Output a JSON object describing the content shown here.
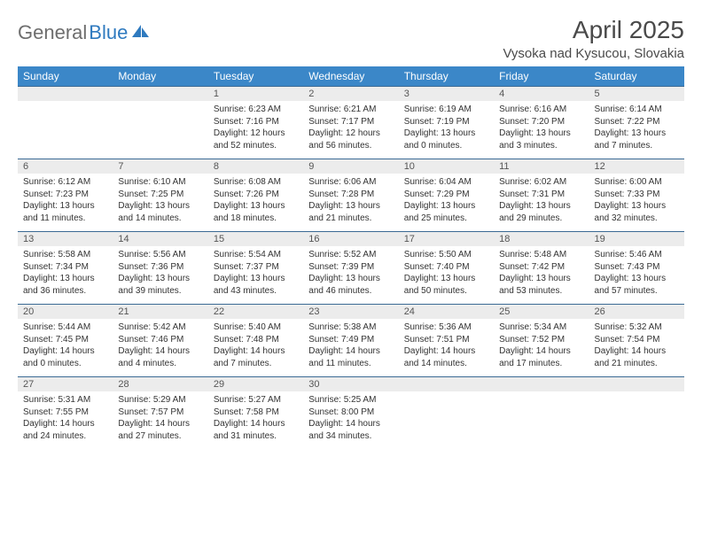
{
  "brand": {
    "name_part1": "General",
    "name_part2": "Blue",
    "icon_color": "#2f7abf"
  },
  "title": {
    "month": "April 2025",
    "location": "Vysoka nad Kysucou, Slovakia"
  },
  "colors": {
    "header_bg": "#3b87c8",
    "header_text": "#ffffff",
    "daynum_bg": "#ececec",
    "row_border": "#3b6a94",
    "body_text": "#333333",
    "title_text": "#4a4a4a",
    "logo_gray": "#6e6e6e"
  },
  "dow": [
    "Sunday",
    "Monday",
    "Tuesday",
    "Wednesday",
    "Thursday",
    "Friday",
    "Saturday"
  ],
  "weeks": [
    [
      {
        "num": "",
        "lines": [
          "",
          "",
          "",
          ""
        ]
      },
      {
        "num": "",
        "lines": [
          "",
          "",
          "",
          ""
        ]
      },
      {
        "num": "1",
        "lines": [
          "Sunrise: 6:23 AM",
          "Sunset: 7:16 PM",
          "Daylight: 12 hours",
          "and 52 minutes."
        ]
      },
      {
        "num": "2",
        "lines": [
          "Sunrise: 6:21 AM",
          "Sunset: 7:17 PM",
          "Daylight: 12 hours",
          "and 56 minutes."
        ]
      },
      {
        "num": "3",
        "lines": [
          "Sunrise: 6:19 AM",
          "Sunset: 7:19 PM",
          "Daylight: 13 hours",
          "and 0 minutes."
        ]
      },
      {
        "num": "4",
        "lines": [
          "Sunrise: 6:16 AM",
          "Sunset: 7:20 PM",
          "Daylight: 13 hours",
          "and 3 minutes."
        ]
      },
      {
        "num": "5",
        "lines": [
          "Sunrise: 6:14 AM",
          "Sunset: 7:22 PM",
          "Daylight: 13 hours",
          "and 7 minutes."
        ]
      }
    ],
    [
      {
        "num": "6",
        "lines": [
          "Sunrise: 6:12 AM",
          "Sunset: 7:23 PM",
          "Daylight: 13 hours",
          "and 11 minutes."
        ]
      },
      {
        "num": "7",
        "lines": [
          "Sunrise: 6:10 AM",
          "Sunset: 7:25 PM",
          "Daylight: 13 hours",
          "and 14 minutes."
        ]
      },
      {
        "num": "8",
        "lines": [
          "Sunrise: 6:08 AM",
          "Sunset: 7:26 PM",
          "Daylight: 13 hours",
          "and 18 minutes."
        ]
      },
      {
        "num": "9",
        "lines": [
          "Sunrise: 6:06 AM",
          "Sunset: 7:28 PM",
          "Daylight: 13 hours",
          "and 21 minutes."
        ]
      },
      {
        "num": "10",
        "lines": [
          "Sunrise: 6:04 AM",
          "Sunset: 7:29 PM",
          "Daylight: 13 hours",
          "and 25 minutes."
        ]
      },
      {
        "num": "11",
        "lines": [
          "Sunrise: 6:02 AM",
          "Sunset: 7:31 PM",
          "Daylight: 13 hours",
          "and 29 minutes."
        ]
      },
      {
        "num": "12",
        "lines": [
          "Sunrise: 6:00 AM",
          "Sunset: 7:33 PM",
          "Daylight: 13 hours",
          "and 32 minutes."
        ]
      }
    ],
    [
      {
        "num": "13",
        "lines": [
          "Sunrise: 5:58 AM",
          "Sunset: 7:34 PM",
          "Daylight: 13 hours",
          "and 36 minutes."
        ]
      },
      {
        "num": "14",
        "lines": [
          "Sunrise: 5:56 AM",
          "Sunset: 7:36 PM",
          "Daylight: 13 hours",
          "and 39 minutes."
        ]
      },
      {
        "num": "15",
        "lines": [
          "Sunrise: 5:54 AM",
          "Sunset: 7:37 PM",
          "Daylight: 13 hours",
          "and 43 minutes."
        ]
      },
      {
        "num": "16",
        "lines": [
          "Sunrise: 5:52 AM",
          "Sunset: 7:39 PM",
          "Daylight: 13 hours",
          "and 46 minutes."
        ]
      },
      {
        "num": "17",
        "lines": [
          "Sunrise: 5:50 AM",
          "Sunset: 7:40 PM",
          "Daylight: 13 hours",
          "and 50 minutes."
        ]
      },
      {
        "num": "18",
        "lines": [
          "Sunrise: 5:48 AM",
          "Sunset: 7:42 PM",
          "Daylight: 13 hours",
          "and 53 minutes."
        ]
      },
      {
        "num": "19",
        "lines": [
          "Sunrise: 5:46 AM",
          "Sunset: 7:43 PM",
          "Daylight: 13 hours",
          "and 57 minutes."
        ]
      }
    ],
    [
      {
        "num": "20",
        "lines": [
          "Sunrise: 5:44 AM",
          "Sunset: 7:45 PM",
          "Daylight: 14 hours",
          "and 0 minutes."
        ]
      },
      {
        "num": "21",
        "lines": [
          "Sunrise: 5:42 AM",
          "Sunset: 7:46 PM",
          "Daylight: 14 hours",
          "and 4 minutes."
        ]
      },
      {
        "num": "22",
        "lines": [
          "Sunrise: 5:40 AM",
          "Sunset: 7:48 PM",
          "Daylight: 14 hours",
          "and 7 minutes."
        ]
      },
      {
        "num": "23",
        "lines": [
          "Sunrise: 5:38 AM",
          "Sunset: 7:49 PM",
          "Daylight: 14 hours",
          "and 11 minutes."
        ]
      },
      {
        "num": "24",
        "lines": [
          "Sunrise: 5:36 AM",
          "Sunset: 7:51 PM",
          "Daylight: 14 hours",
          "and 14 minutes."
        ]
      },
      {
        "num": "25",
        "lines": [
          "Sunrise: 5:34 AM",
          "Sunset: 7:52 PM",
          "Daylight: 14 hours",
          "and 17 minutes."
        ]
      },
      {
        "num": "26",
        "lines": [
          "Sunrise: 5:32 AM",
          "Sunset: 7:54 PM",
          "Daylight: 14 hours",
          "and 21 minutes."
        ]
      }
    ],
    [
      {
        "num": "27",
        "lines": [
          "Sunrise: 5:31 AM",
          "Sunset: 7:55 PM",
          "Daylight: 14 hours",
          "and 24 minutes."
        ]
      },
      {
        "num": "28",
        "lines": [
          "Sunrise: 5:29 AM",
          "Sunset: 7:57 PM",
          "Daylight: 14 hours",
          "and 27 minutes."
        ]
      },
      {
        "num": "29",
        "lines": [
          "Sunrise: 5:27 AM",
          "Sunset: 7:58 PM",
          "Daylight: 14 hours",
          "and 31 minutes."
        ]
      },
      {
        "num": "30",
        "lines": [
          "Sunrise: 5:25 AM",
          "Sunset: 8:00 PM",
          "Daylight: 14 hours",
          "and 34 minutes."
        ]
      },
      {
        "num": "",
        "lines": [
          "",
          "",
          "",
          ""
        ]
      },
      {
        "num": "",
        "lines": [
          "",
          "",
          "",
          ""
        ]
      },
      {
        "num": "",
        "lines": [
          "",
          "",
          "",
          ""
        ]
      }
    ]
  ]
}
